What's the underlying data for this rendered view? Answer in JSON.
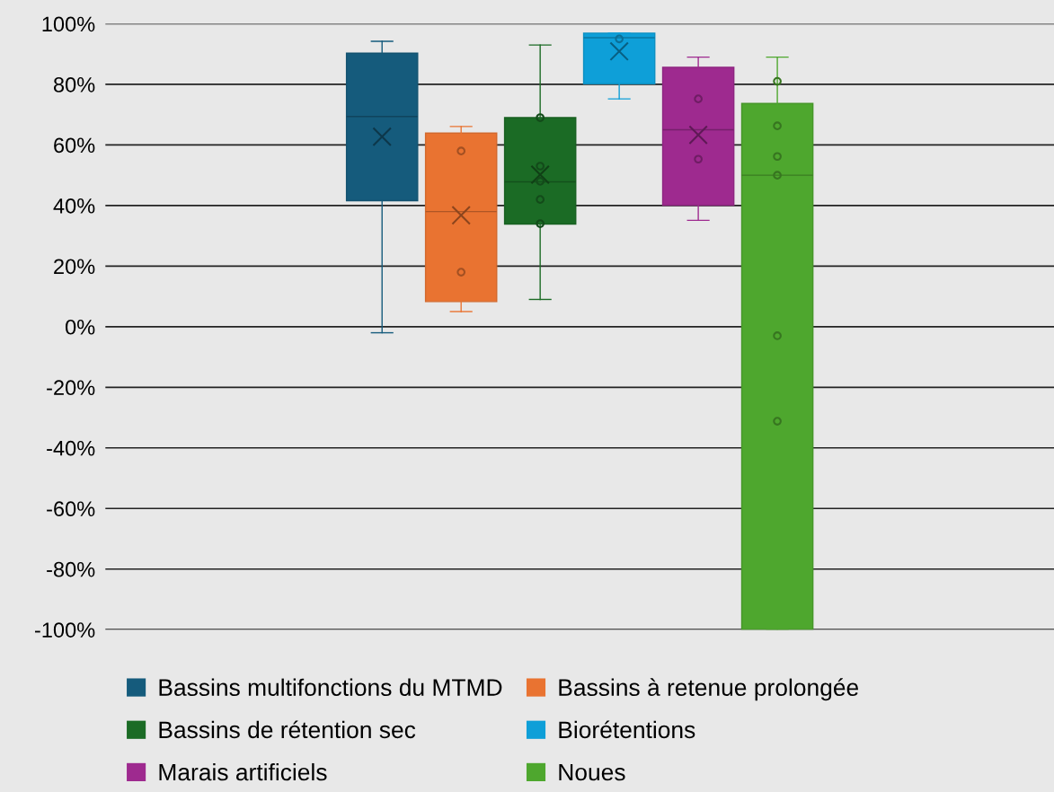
{
  "chart_data": {
    "type": "box",
    "categories": [
      null
    ],
    "series": [
      {
        "name": "Bassins multifonctions du MTMD",
        "color": "#155b7c",
        "boxes": [
          {
            "low": -2,
            "q1": 41.6,
            "median": 69.4,
            "q3": 90.3,
            "high": 94.2,
            "mean": 62.7
          }
        ]
      },
      {
        "name": "Bassins à retenue prolongée",
        "color": "#e97331",
        "boxes": [
          {
            "low": 5,
            "q1": 8.3,
            "median": 38,
            "q3": 63.9,
            "high": 66.1,
            "mean": 36.8
          }
        ]
      },
      {
        "type": "scatter",
        "color": "#a35022",
        "x": [
          null,
          null
        ],
        "values": [
          58,
          18
        ]
      },
      {
        "name": "Bassins de rétention sec",
        "color": "#1b6b25",
        "boxes": [
          {
            "low": 9,
            "q1": 33.9,
            "median": 47.8,
            "q3": 69,
            "high": 93,
            "mean": 50.2
          }
        ]
      },
      {
        "type": "scatter",
        "color": "#134b1a",
        "x": [
          null,
          null,
          null,
          null,
          null
        ],
        "values": [
          69,
          53,
          48,
          42,
          34
        ]
      },
      {
        "name": "Biorétentions",
        "color": "#0e9fd8",
        "boxes": [
          {
            "low": 75.2,
            "q1": 80.2,
            "median": 95.4,
            "q3": 96.9,
            "high": 96.9,
            "mean": 90.9
          }
        ]
      },
      {
        "type": "scatter",
        "color": "#0a6f97",
        "x": [
          null
        ],
        "values": [
          95
        ]
      },
      {
        "name": "Marais artificiels",
        "color": "#9e2a8f",
        "boxes": [
          {
            "low": 35.1,
            "q1": 40.1,
            "median": 65,
            "q3": 85.6,
            "high": 89,
            "mean": 63.3
          }
        ]
      },
      {
        "type": "scatter",
        "color": "#6f1d64",
        "x": [
          null,
          null
        ],
        "values": [
          75.2,
          55.3
        ]
      },
      {
        "name": "Noues",
        "color": "#4ea72e",
        "boxes": [
          {
            "low": -100,
            "q1": -100,
            "median": 50,
            "q3": 73.7,
            "high": 89
          }
        ]
      },
      {
        "type": "scatter",
        "color": "#377520",
        "x": [
          null,
          null,
          null,
          null,
          null,
          null
        ],
        "values": [
          81,
          66.3,
          56.2,
          50,
          -3,
          -31.2
        ]
      }
    ],
    "ylim": [
      -100,
      100
    ],
    "yticks": [
      {
        "value": -100,
        "label": "-100%"
      },
      {
        "value": -80,
        "label": "-80%"
      },
      {
        "value": -60,
        "label": "-60%"
      },
      {
        "value": -40,
        "label": "-40%"
      },
      {
        "value": -20,
        "label": "-20%"
      },
      {
        "value": 0,
        "label": "0%"
      },
      {
        "value": 20,
        "label": "20%"
      },
      {
        "value": 40,
        "label": "40%"
      },
      {
        "value": 60,
        "label": "60%"
      },
      {
        "value": 80,
        "label": "80%"
      },
      {
        "value": 100,
        "label": "100%"
      }
    ],
    "grid": "y",
    "legend": "bottom",
    "marker": "circle"
  }
}
